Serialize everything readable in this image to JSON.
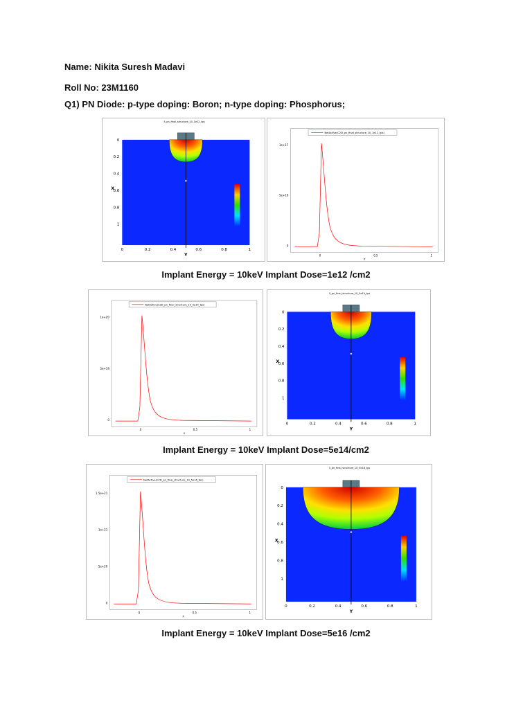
{
  "header": {
    "name": "Name: Nikita Suresh Madavi",
    "roll": "Roll No: 23M1160",
    "question": "Q1) PN Diode: p-type doping: Boron; n-type doping: Phosphorus;"
  },
  "figures": [
    {
      "caption": "Implant Energy = 10keV Implant Dose=1e12 /cm2",
      "contour": {
        "title": "5_pn_final_structure_10_1e12_tps",
        "xlabel": "Y",
        "ylabel": "X",
        "xticks": [
          "0",
          "0.2",
          "0.4",
          "0.6",
          "0.8",
          "1"
        ],
        "yticks": [
          "0",
          "0.2",
          "0.4",
          "0.6",
          "0.8",
          "1"
        ]
      },
      "profile": {
        "legend": "NetActive(C2D_pn_final_structure_10_1e12_tps)",
        "xlabel": "x",
        "yticks": [
          "1e+17",
          "5e+16",
          "0"
        ],
        "xticks": [
          "0",
          "0.5",
          "1"
        ]
      }
    },
    {
      "caption": "Implant Energy = 10keV Implant Dose=5e14/cm2",
      "contour": {
        "title": "5_pn_final_structure_10_5e14_tps",
        "xlabel": "Y",
        "ylabel": "X",
        "xticks": [
          "0",
          "0.2",
          "0.4",
          "0.6",
          "0.8",
          "1"
        ],
        "yticks": [
          "0",
          "0.2",
          "0.4",
          "0.6",
          "0.8",
          "1"
        ]
      },
      "profile": {
        "legend": "NetActive(C2D_pn_final_structure_10_5e14_tps)",
        "xlabel": "x",
        "yticks": [
          "1e+20",
          "5e+19",
          "0"
        ],
        "xticks": [
          "0",
          "0.5",
          "1"
        ]
      }
    },
    {
      "caption": "Implant Energy = 10keV Implant Dose=5e16 /cm2",
      "contour": {
        "title": "5_pn_final_structure_10_5e16_tps",
        "xlabel": "Y",
        "ylabel": "X",
        "xticks": [
          "0",
          "0.2",
          "0.4",
          "0.6",
          "0.8",
          "1"
        ],
        "yticks": [
          "0",
          "0.2",
          "0.4",
          "0.6",
          "0.8",
          "1"
        ]
      },
      "profile": {
        "legend": "NetActive(C2D_pn_final_structure_10_5e16_tps)",
        "xlabel": "x",
        "yticks": [
          "1.5e+21",
          "1e+21",
          "5e+20",
          "0"
        ],
        "xticks": [
          "0",
          "0.5",
          "1"
        ]
      }
    }
  ]
}
